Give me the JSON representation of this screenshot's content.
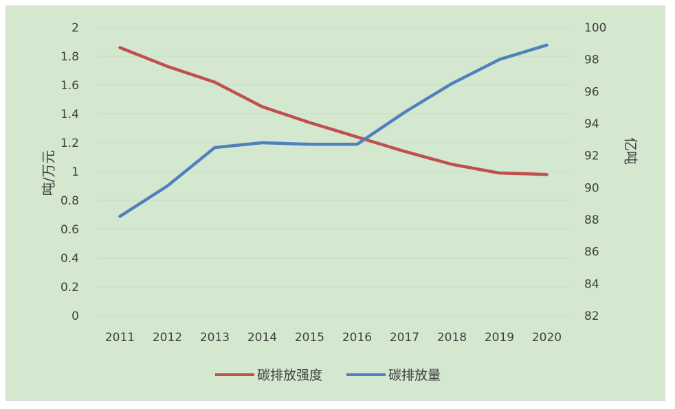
{
  "chart_data": {
    "type": "line",
    "title": "",
    "categories": [
      "2011",
      "2012",
      "2013",
      "2014",
      "2015",
      "2016",
      "2017",
      "2018",
      "2019",
      "2020"
    ],
    "series": [
      {
        "name": "碳排放强度",
        "axis": "left",
        "color": "#c0504d",
        "values": [
          1.86,
          1.73,
          1.62,
          1.45,
          1.34,
          1.24,
          1.14,
          1.05,
          0.99,
          0.98
        ]
      },
      {
        "name": "碳排放量",
        "axis": "right",
        "color": "#4f81bd",
        "values": [
          88.2,
          90.1,
          92.5,
          92.8,
          92.7,
          92.7,
          94.7,
          96.5,
          98.0,
          98.9
        ]
      }
    ],
    "y_left": {
      "label": "吨/万元",
      "range": [
        0,
        2
      ],
      "ticks": [
        "0",
        "0.2",
        "0.4",
        "0.6",
        "0.8",
        "1",
        "1.2",
        "1.4",
        "1.6",
        "1.8",
        "2"
      ]
    },
    "y_right": {
      "label": "亿吨",
      "range": [
        82,
        100
      ],
      "ticks": [
        "82",
        "84",
        "86",
        "88",
        "90",
        "92",
        "94",
        "96",
        "98",
        "100"
      ]
    },
    "grid": true,
    "legend": "bottom",
    "background": "#d4e8cf"
  }
}
